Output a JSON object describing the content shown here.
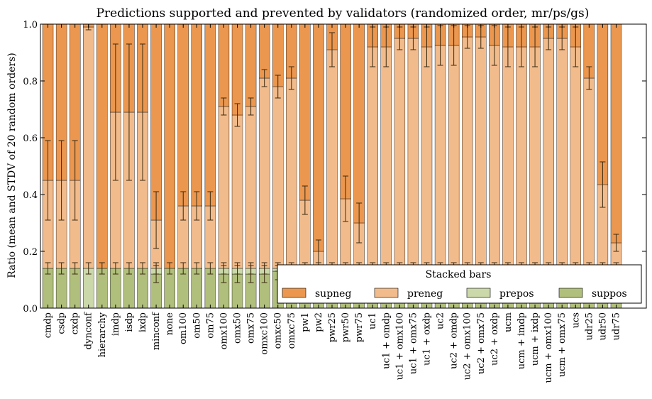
{
  "chart_data": {
    "type": "bar",
    "stacked": true,
    "title": "Predictions supported and prevented by validators (randomized order, mr/ps/gs)",
    "xlabel": "",
    "ylabel": "Ratio (mean and STDV of 20 random orders)",
    "ylim": [
      0,
      1
    ],
    "yticks": [
      "0.0",
      "0.2",
      "0.4",
      "0.6",
      "0.8",
      "1.0"
    ],
    "categories": [
      "cmdp",
      "csdp",
      "cxdp",
      "dynconf",
      "hierarchy",
      "imdp",
      "isdp",
      "ixdp",
      "minconf",
      "none",
      "om100",
      "om50",
      "om75",
      "omx100",
      "omx50",
      "omx75",
      "omxc100",
      "omxc50",
      "omxc75",
      "pw1",
      "pw2",
      "pwr25",
      "pwr50",
      "pwr75",
      "uc1",
      "uc1 + omdp",
      "uc1 + omx100",
      "uc1 + omx75",
      "uc1 + oxdp",
      "uc2",
      "uc2 + omdp",
      "uc2 + omx100",
      "uc2 + omx75",
      "uc2 + oxdp",
      "ucm",
      "ucm + imdp",
      "ucm + ixdp",
      "ucm + omx100",
      "ucm + omx75",
      "ucs",
      "udr25",
      "udr50",
      "udr75"
    ],
    "grid": false,
    "legend": {
      "title": "Stacked bars",
      "placement": "lower-right",
      "entries": [
        {
          "label": "supneg",
          "color": "#eb974f"
        },
        {
          "label": "preneg",
          "color": "#f2bb8b"
        },
        {
          "label": "prepos",
          "color": "#cbd8a9"
        },
        {
          "label": "suppos",
          "color": "#b0bf7b"
        }
      ]
    },
    "series": [
      {
        "name": "suppos",
        "color": "#b0bf7b",
        "values": [
          0.14,
          0.14,
          0.14,
          0,
          0.14,
          0.14,
          0.14,
          0.14,
          0.12,
          0.14,
          0.14,
          0.14,
          0.14,
          0.12,
          0.12,
          0.12,
          0.12,
          0.13,
          0.13,
          0.14,
          0.14,
          0.14,
          0.14,
          0.14,
          0.14,
          0.14,
          0.14,
          0.14,
          0.14,
          0.14,
          0.14,
          0.14,
          0.14,
          0.14,
          0.14,
          0.14,
          0.14,
          0.14,
          0.14,
          0.14,
          0.14,
          0.14,
          0.14
        ],
        "err": [
          0.02,
          0.02,
          0.02,
          0,
          0.02,
          0.02,
          0.02,
          0.02,
          0.03,
          0.02,
          0.02,
          0.02,
          0.02,
          0.03,
          0.03,
          0.03,
          0.03,
          0.03,
          0.03,
          0.02,
          0.02,
          0.02,
          0.02,
          0.02,
          0.02,
          0.02,
          0.02,
          0.02,
          0.02,
          0.02,
          0.02,
          0.02,
          0.02,
          0.02,
          0.02,
          0.02,
          0.02,
          0.02,
          0.02,
          0.02,
          0.02,
          0.02,
          0.02
        ]
      },
      {
        "name": "prepos",
        "color": "#cbd8a9",
        "values": [
          0,
          0,
          0,
          0.14,
          0,
          0,
          0,
          0,
          0.02,
          0,
          0,
          0,
          0,
          0.02,
          0.02,
          0.02,
          0.02,
          0.01,
          0.01,
          0,
          0,
          0,
          0,
          0,
          0,
          0,
          0,
          0,
          0,
          0,
          0,
          0,
          0,
          0,
          0,
          0,
          0,
          0,
          0,
          0,
          0,
          0,
          0
        ],
        "err": [
          0,
          0,
          0,
          0.02,
          0,
          0,
          0,
          0,
          0.02,
          0,
          0,
          0,
          0,
          0.02,
          0.02,
          0.02,
          0.02,
          0.01,
          0.01,
          0,
          0,
          0,
          0,
          0,
          0,
          0,
          0,
          0,
          0,
          0,
          0,
          0,
          0,
          0,
          0,
          0,
          0,
          0,
          0,
          0,
          0,
          0,
          0
        ]
      },
      {
        "name": "preneg",
        "color": "#f2bb8b",
        "values": [
          0.31,
          0.31,
          0.31,
          0.85,
          0,
          0.55,
          0.55,
          0.55,
          0.17,
          0,
          0.22,
          0.22,
          0.22,
          0.57,
          0.54,
          0.57,
          0.67,
          0.64,
          0.67,
          0.24,
          0.06,
          0.77,
          0.245,
          0.16,
          0.78,
          0.78,
          0.81,
          0.81,
          0.78,
          0.785,
          0.785,
          0.815,
          0.815,
          0.785,
          0.78,
          0.78,
          0.78,
          0.81,
          0.81,
          0.78,
          0.67,
          0.295,
          0.09
        ],
        "err": [
          0.14,
          0.14,
          0.14,
          0.01,
          0,
          0.24,
          0.24,
          0.24,
          0.1,
          0,
          0.05,
          0.05,
          0.05,
          0.03,
          0.04,
          0.03,
          0.03,
          0.04,
          0.04,
          0.05,
          0.04,
          0.06,
          0.08,
          0.07,
          0.07,
          0.07,
          0.04,
          0.04,
          0.07,
          0.07,
          0.07,
          0.04,
          0.04,
          0.07,
          0.07,
          0.07,
          0.07,
          0.04,
          0.04,
          0.07,
          0.04,
          0.08,
          0.03
        ]
      },
      {
        "name": "supneg",
        "color": "#eb974f",
        "values": [
          0.55,
          0.55,
          0.55,
          0.01,
          0.86,
          0.31,
          0.31,
          0.31,
          0.69,
          0.86,
          0.64,
          0.64,
          0.64,
          0.29,
          0.32,
          0.29,
          0.19,
          0.22,
          0.19,
          0.62,
          0.8,
          0.09,
          0.615,
          0.7,
          0.08,
          0.08,
          0.05,
          0.05,
          0.08,
          0.075,
          0.075,
          0.045,
          0.045,
          0.075,
          0.08,
          0.08,
          0.08,
          0.05,
          0.05,
          0.08,
          0.19,
          0.565,
          0.77
        ],
        "err": [
          0,
          0,
          0,
          0,
          0,
          0,
          0,
          0,
          0,
          0,
          0,
          0,
          0,
          0,
          0,
          0,
          0,
          0,
          0,
          0,
          0,
          0,
          0,
          0,
          0,
          0,
          0,
          0,
          0,
          0,
          0,
          0,
          0,
          0,
          0,
          0,
          0,
          0,
          0,
          0,
          0,
          0,
          0
        ]
      }
    ]
  }
}
